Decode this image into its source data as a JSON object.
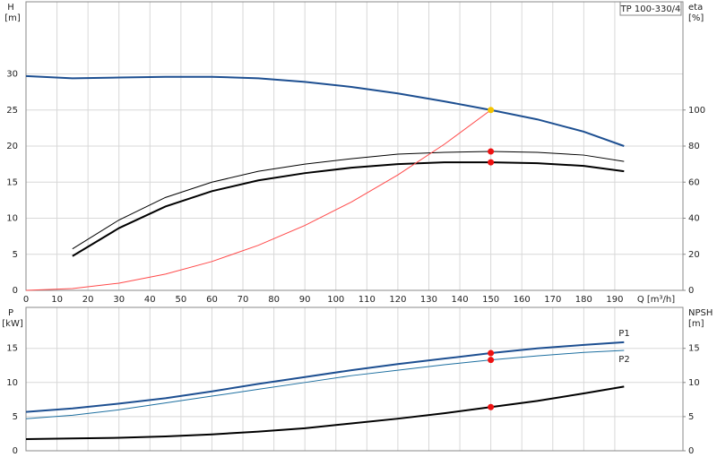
{
  "chart_data": [
    {
      "type": "line",
      "title": "TP 100-330/4",
      "ylabel": "H",
      "yunit": "[m]",
      "y2label": "eta",
      "y2unit": "[%]",
      "xlabel": "Q [m³/h]",
      "x": [
        0,
        15,
        30,
        45,
        60,
        75,
        90,
        105,
        120,
        135,
        150,
        165,
        180,
        193
      ],
      "xlim": [
        0,
        212
      ],
      "xticks": [
        0,
        10,
        20,
        30,
        40,
        50,
        60,
        70,
        80,
        90,
        100,
        110,
        120,
        130,
        140,
        150,
        160,
        170,
        180,
        190
      ],
      "ylim": [
        0,
        40
      ],
      "yticks": [
        0,
        5,
        10,
        15,
        20,
        25,
        30
      ],
      "y2lim": [
        0,
        160
      ],
      "y2ticks": [
        0,
        20,
        40,
        60,
        80,
        100
      ],
      "grid": true,
      "series": [
        {
          "color": "#1d4f91",
          "width": 2,
          "values": [
            29.7,
            29.4,
            29.5,
            29.6,
            29.6,
            29.4,
            28.9,
            28.2,
            27.3,
            26.2,
            25,
            23.7,
            22,
            20
          ]
        },
        {
          "color": "#000000",
          "width": 1,
          "axis": "y2",
          "values": [
            null,
            23,
            39,
            51.5,
            60,
            66,
            70,
            73,
            75.5,
            76.5,
            77,
            76.5,
            75,
            71.5
          ]
        },
        {
          "color": "#000000",
          "width": 2,
          "axis": "y2",
          "values": [
            null,
            19,
            34.5,
            46.5,
            55,
            61,
            65,
            68,
            70,
            71,
            71,
            70.5,
            69,
            66
          ]
        },
        {
          "color": "#ff4a4a",
          "width": 1,
          "values": [
            0,
            0.25,
            1,
            2.25,
            4,
            6.25,
            9,
            12.25,
            16,
            20.25,
            25,
            null,
            null,
            null
          ]
        }
      ],
      "points": [
        {
          "x": 150,
          "y": 25,
          "color": "#f5c400"
        },
        {
          "x": 150,
          "y": 77,
          "color": "#ee1111",
          "axis": "y2"
        },
        {
          "x": 150,
          "y": 71,
          "color": "#ee1111",
          "axis": "y2"
        }
      ]
    },
    {
      "type": "line",
      "ylabel": "P",
      "yunit": "[kW]",
      "y2label": "NPSH",
      "y2unit": "[m]",
      "x": [
        0,
        15,
        30,
        45,
        60,
        75,
        90,
        105,
        120,
        135,
        150,
        165,
        180,
        193
      ],
      "xlim": [
        0,
        212
      ],
      "xticks": [
        0,
        10,
        20,
        30,
        40,
        50,
        60,
        70,
        80,
        90,
        100,
        110,
        120,
        130,
        140,
        150,
        160,
        170,
        180,
        190
      ],
      "ylim": [
        0,
        21
      ],
      "yticks": [
        0,
        5,
        10,
        15
      ],
      "y2lim": [
        0,
        21
      ],
      "y2ticks": [
        0,
        5,
        10,
        15
      ],
      "grid": true,
      "series": [
        {
          "name": "P1",
          "color": "#1d4f91",
          "width": 2,
          "values": [
            5.7,
            6.2,
            6.9,
            7.7,
            8.7,
            9.8,
            10.8,
            11.8,
            12.7,
            13.5,
            14.3,
            15,
            15.5,
            15.9
          ]
        },
        {
          "name": "P2",
          "color": "#1d6fa0",
          "width": 1,
          "values": [
            4.7,
            5.2,
            6,
            7,
            8,
            9,
            10,
            11,
            11.8,
            12.6,
            13.3,
            13.9,
            14.4,
            14.7
          ]
        },
        {
          "color": "#000000",
          "width": 2,
          "axis": "y2",
          "values": [
            1.7,
            1.8,
            1.9,
            2.1,
            2.4,
            2.8,
            3.3,
            4,
            4.7,
            5.5,
            6.4,
            7.3,
            8.4,
            9.4
          ]
        }
      ],
      "points": [
        {
          "x": 150,
          "y": 14.3,
          "color": "#ee1111"
        },
        {
          "x": 150,
          "y": 13.3,
          "color": "#ee1111"
        },
        {
          "x": 150,
          "y": 6.4,
          "color": "#ee1111",
          "axis": "y2"
        }
      ]
    }
  ]
}
